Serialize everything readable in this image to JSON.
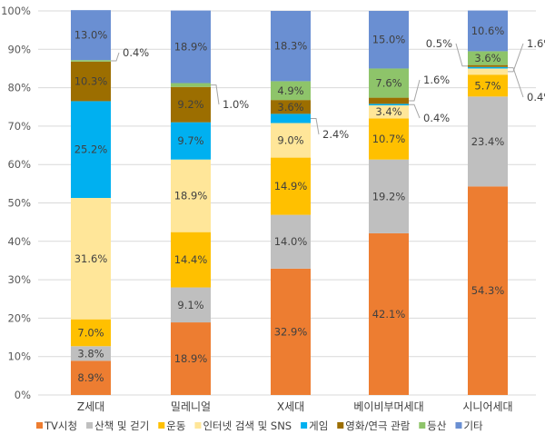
{
  "chart_data": {
    "type": "bar",
    "stacked": true,
    "categories": [
      "Z세대",
      "밀레니얼",
      "X세대",
      "베이비부머세대",
      "시니어세대"
    ],
    "ylim": [
      0,
      100
    ],
    "yticks": [
      "0%",
      "10%",
      "20%",
      "30%",
      "40%",
      "50%",
      "60%",
      "70%",
      "80%",
      "90%",
      "100%"
    ],
    "grid": true,
    "legend_position": "bottom",
    "series": [
      {
        "name": "TV시청",
        "color": "#ED7D31",
        "values": [
          8.9,
          18.9,
          32.9,
          42.1,
          54.3
        ]
      },
      {
        "name": "산책 및 걷기",
        "color": "#BFBFBF",
        "values": [
          3.8,
          9.1,
          14.0,
          19.2,
          23.4
        ]
      },
      {
        "name": "운동",
        "color": "#FFC000",
        "values": [
          7.0,
          14.4,
          14.9,
          10.7,
          5.7
        ]
      },
      {
        "name": "인터넷 검색 및 SNS",
        "color": "#FFE699",
        "values": [
          31.6,
          18.9,
          9.0,
          3.4,
          1.6
        ]
      },
      {
        "name": "게임",
        "color": "#00B0F0",
        "values": [
          25.2,
          9.7,
          2.4,
          0.4,
          0.4
        ]
      },
      {
        "name": "영화/연극 관람",
        "color": "#9C6E00",
        "values": [
          10.3,
          9.2,
          3.6,
          1.6,
          0.5
        ]
      },
      {
        "name": "등산",
        "color": "#8EC46A",
        "values": [
          0.4,
          1.0,
          4.9,
          7.6,
          3.6
        ]
      },
      {
        "name": "기타",
        "color": "#6A8FD2",
        "values": [
          13.0,
          18.9,
          18.3,
          15.0,
          10.6
        ]
      }
    ]
  }
}
